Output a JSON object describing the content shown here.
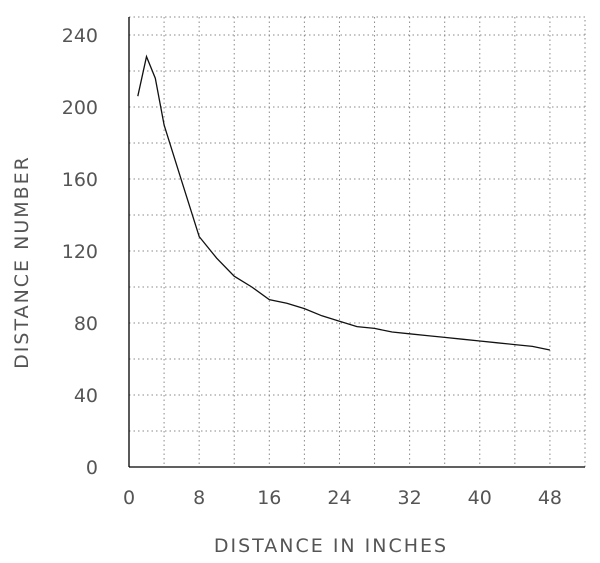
{
  "chart_data": {
    "type": "line",
    "xlabel": "DISTANCE IN INCHES",
    "ylabel": "DISTANCE NUMBER",
    "xlim": [
      0,
      52
    ],
    "ylim": [
      0,
      250
    ],
    "x_ticks": [
      "0",
      "8",
      "16",
      "24",
      "32",
      "40",
      "48"
    ],
    "y_ticks": [
      "0",
      "40",
      "80",
      "120",
      "160",
      "200",
      "240"
    ],
    "grid": true,
    "series": [
      {
        "x": [
          1,
          2,
          3,
          4,
          6,
          8,
          10,
          12,
          14,
          16,
          18,
          20,
          22,
          24,
          26,
          28,
          30,
          32,
          34,
          36,
          38,
          40,
          42,
          44,
          46,
          48
        ],
        "y": [
          206,
          228,
          216,
          190,
          159,
          128,
          116,
          106,
          100,
          93,
          91,
          88,
          84,
          81,
          78,
          77,
          75,
          74,
          73,
          72,
          71,
          70,
          69,
          68,
          67,
          65
        ]
      }
    ]
  }
}
